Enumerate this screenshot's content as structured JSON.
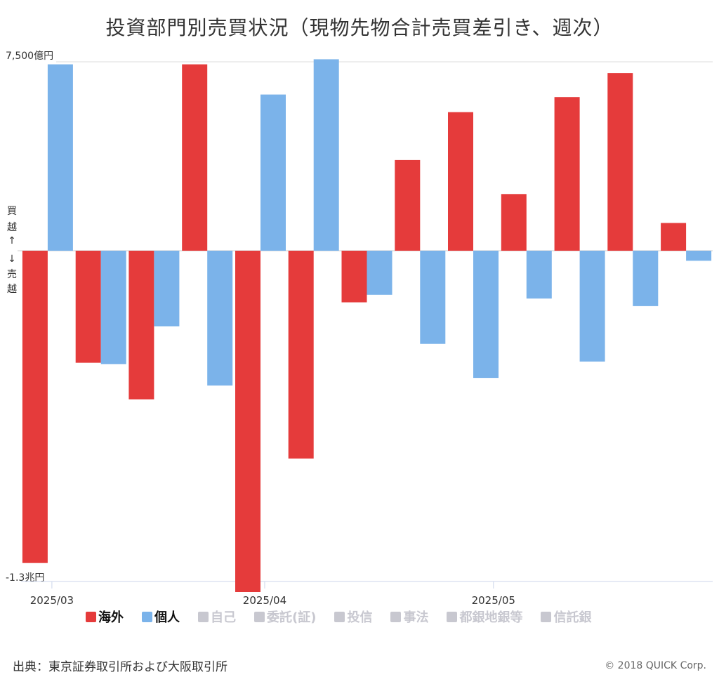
{
  "chart_data": {
    "type": "bar",
    "title": "投資部門別売買状況（現物先物合計売買差引き、週次）",
    "ylim_labels": {
      "top": "7,500億円",
      "bottom": "-1.3兆円"
    },
    "ylim": [
      -13000,
      7500
    ],
    "side_label": [
      "買",
      "越",
      "↑",
      "↓",
      "売",
      "越"
    ],
    "x_tick_labels": [
      {
        "label": "2025/03",
        "after_category_index": 0
      },
      {
        "label": "2025/04",
        "after_category_index": 4
      },
      {
        "label": "2025/05",
        "after_category_index": 8.3
      }
    ],
    "num_weeks": 13,
    "series": [
      {
        "name": "海外",
        "color": "#e53b3b",
        "values": [
          -12400,
          -4450,
          -5900,
          7400,
          -13550,
          -8250,
          -2050,
          3600,
          5500,
          2250,
          6100,
          7050,
          1100
        ]
      },
      {
        "name": "個人",
        "color": "#7bb3ea",
        "values": [
          7400,
          -4500,
          -3000,
          -5350,
          6200,
          7600,
          -1750,
          -3700,
          -5050,
          -1900,
          -4400,
          -2200,
          -400
        ]
      }
    ],
    "legend": [
      {
        "name": "海外",
        "color": "#e53b3b",
        "active": true
      },
      {
        "name": "個人",
        "color": "#7bb3ea",
        "active": true
      },
      {
        "name": "自己",
        "color": "#c8c8d0",
        "active": false
      },
      {
        "name": "委託(証)",
        "color": "#c8c8d0",
        "active": false
      },
      {
        "name": "投信",
        "color": "#c8c8d0",
        "active": false
      },
      {
        "name": "事法",
        "color": "#c8c8d0",
        "active": false
      },
      {
        "name": "都銀地銀等",
        "color": "#c8c8d0",
        "active": false
      },
      {
        "name": "信託銀",
        "color": "#c8c8d0",
        "active": false
      }
    ],
    "legend_text_colors": {
      "active": "#111111",
      "inactive": "#c8c8d0"
    }
  },
  "footer": {
    "source": "出典：東京証券取引所および大阪取引所",
    "credit": "© 2018 QUICK Corp."
  }
}
